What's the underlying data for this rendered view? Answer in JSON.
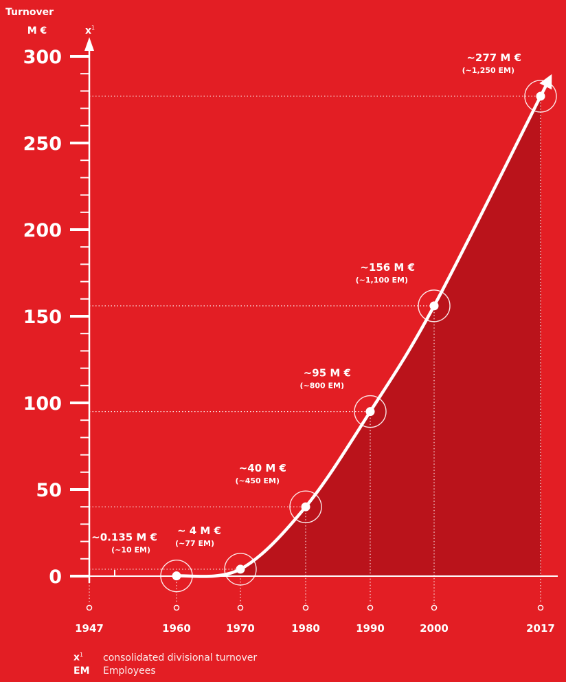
{
  "colors": {
    "background": "#e31e24",
    "area": "#b3121a",
    "line": "#ffffff"
  },
  "chart_data": {
    "type": "line",
    "ylabel": "Turnover",
    "yunit": "M €",
    "axis_marker": "x",
    "axis_marker_sup": "1",
    "ylim": [
      0,
      300
    ],
    "yticks": [
      0,
      50,
      100,
      150,
      200,
      250,
      300
    ],
    "x_ticks": [
      "1947",
      "1960",
      "1970",
      "1980",
      "1990",
      "2000",
      "2017"
    ],
    "series": [
      {
        "x": [
          1960,
          1970,
          1980,
          1990,
          2000,
          2017
        ],
        "y": [
          0.135,
          4,
          40,
          95,
          156,
          277
        ]
      }
    ],
    "annotations": [
      {
        "x": 1960,
        "y": 0.135,
        "label": "~0.135 M €",
        "sub": "(~10 EM)"
      },
      {
        "x": 1970,
        "y": 4,
        "label": "~ 4 M €",
        "sub": "(~77 EM)"
      },
      {
        "x": 1980,
        "y": 40,
        "label": "~40 M €",
        "sub": "(~450 EM)"
      },
      {
        "x": 1990,
        "y": 95,
        "label": "~95 M €",
        "sub": "(~800 EM)"
      },
      {
        "x": 2000,
        "y": 156,
        "label": "~156 M €",
        "sub": "(~1,100 EM)"
      },
      {
        "x": 2017,
        "y": 277,
        "label": "~277 M €",
        "sub": "(~1,250 EM)"
      }
    ]
  },
  "legend": {
    "items": [
      {
        "key": "x",
        "sup": "1",
        "text": "consolidated divisional turnover"
      },
      {
        "key": "EM",
        "sup": "",
        "text": "Employees"
      }
    ]
  }
}
